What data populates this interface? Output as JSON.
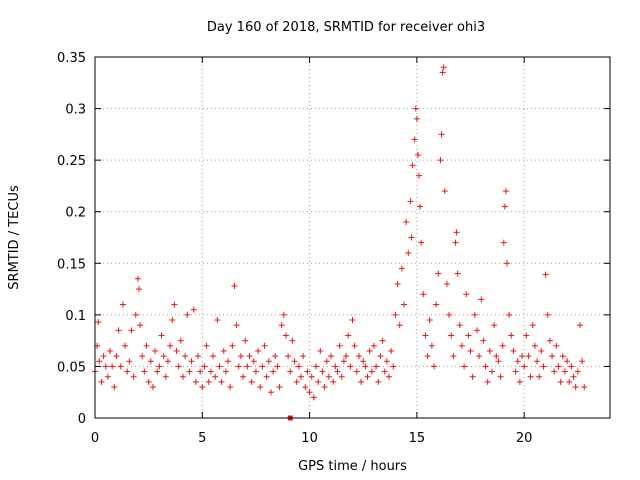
{
  "chart_data": {
    "type": "scatter",
    "title": "Day 160 of 2018, SRMTID for receiver ohi3",
    "xlabel": "GPS time / hours",
    "ylabel": "SRMTID / TECUs",
    "xlim": [
      0,
      24
    ],
    "ylim": [
      0,
      0.35
    ],
    "xticks": [
      0,
      5,
      10,
      15,
      20
    ],
    "xtick_labels": [
      "0",
      "5",
      "10",
      "15",
      "20"
    ],
    "yticks": [
      0,
      0.05,
      0.1,
      0.15,
      0.2,
      0.25,
      0.3,
      0.35
    ],
    "ytick_labels": [
      "0",
      "0.05",
      "0.1",
      "0.15",
      "0.2",
      "0.25",
      "0.3",
      "0.35"
    ],
    "grid": true,
    "marker": "+",
    "color": "#e31a1c",
    "series": [
      {
        "name": "SRMTID",
        "points": [
          [
            0.0,
            0.045
          ],
          [
            0.1,
            0.07
          ],
          [
            0.15,
            0.093
          ],
          [
            0.2,
            0.055
          ],
          [
            0.3,
            0.035
          ],
          [
            0.4,
            0.06
          ],
          [
            0.5,
            0.05
          ],
          [
            0.6,
            0.04
          ],
          [
            0.7,
            0.065
          ],
          [
            0.8,
            0.05
          ],
          [
            0.9,
            0.03
          ],
          [
            1.0,
            0.06
          ],
          [
            1.1,
            0.085
          ],
          [
            1.2,
            0.05
          ],
          [
            1.3,
            0.11
          ],
          [
            1.4,
            0.07
          ],
          [
            1.5,
            0.045
          ],
          [
            1.6,
            0.055
          ],
          [
            1.7,
            0.085
          ],
          [
            1.8,
            0.04
          ],
          [
            1.9,
            0.1
          ],
          [
            2.0,
            0.135
          ],
          [
            2.05,
            0.125
          ],
          [
            2.1,
            0.09
          ],
          [
            2.2,
            0.06
          ],
          [
            2.3,
            0.045
          ],
          [
            2.4,
            0.07
          ],
          [
            2.5,
            0.035
          ],
          [
            2.6,
            0.055
          ],
          [
            2.7,
            0.03
          ],
          [
            2.8,
            0.065
          ],
          [
            2.9,
            0.045
          ],
          [
            3.0,
            0.05
          ],
          [
            3.1,
            0.08
          ],
          [
            3.2,
            0.06
          ],
          [
            3.3,
            0.04
          ],
          [
            3.4,
            0.055
          ],
          [
            3.5,
            0.07
          ],
          [
            3.6,
            0.095
          ],
          [
            3.7,
            0.11
          ],
          [
            3.8,
            0.065
          ],
          [
            3.9,
            0.05
          ],
          [
            4.0,
            0.075
          ],
          [
            4.1,
            0.04
          ],
          [
            4.2,
            0.06
          ],
          [
            4.3,
            0.1
          ],
          [
            4.4,
            0.045
          ],
          [
            4.5,
            0.055
          ],
          [
            4.6,
            0.105
          ],
          [
            4.7,
            0.035
          ],
          [
            4.8,
            0.06
          ],
          [
            4.9,
            0.045
          ],
          [
            5.0,
            0.03
          ],
          [
            5.1,
            0.05
          ],
          [
            5.2,
            0.07
          ],
          [
            5.3,
            0.035
          ],
          [
            5.4,
            0.045
          ],
          [
            5.5,
            0.06
          ],
          [
            5.6,
            0.04
          ],
          [
            5.7,
            0.095
          ],
          [
            5.8,
            0.05
          ],
          [
            5.9,
            0.035
          ],
          [
            6.0,
            0.065
          ],
          [
            6.1,
            0.045
          ],
          [
            6.2,
            0.055
          ],
          [
            6.3,
            0.03
          ],
          [
            6.4,
            0.07
          ],
          [
            6.5,
            0.128
          ],
          [
            6.6,
            0.09
          ],
          [
            6.7,
            0.05
          ],
          [
            6.8,
            0.06
          ],
          [
            6.9,
            0.04
          ],
          [
            7.0,
            0.075
          ],
          [
            7.1,
            0.05
          ],
          [
            7.2,
            0.06
          ],
          [
            7.3,
            0.035
          ],
          [
            7.4,
            0.055
          ],
          [
            7.5,
            0.045
          ],
          [
            7.6,
            0.065
          ],
          [
            7.7,
            0.03
          ],
          [
            7.8,
            0.05
          ],
          [
            7.9,
            0.07
          ],
          [
            8.0,
            0.04
          ],
          [
            8.1,
            0.055
          ],
          [
            8.2,
            0.025
          ],
          [
            8.3,
            0.045
          ],
          [
            8.4,
            0.06
          ],
          [
            8.5,
            0.05
          ],
          [
            8.6,
            0.03
          ],
          [
            8.7,
            0.09
          ],
          [
            8.8,
            0.1
          ],
          [
            8.9,
            0.08
          ],
          [
            9.0,
            0.06
          ],
          [
            9.1,
            0.045
          ],
          [
            9.2,
            0.075
          ],
          [
            9.3,
            0.055
          ],
          [
            9.4,
            0.035
          ],
          [
            9.5,
            0.05
          ],
          [
            9.6,
            0.04
          ],
          [
            9.7,
            0.06
          ],
          [
            9.8,
            0.03
          ],
          [
            9.9,
            0.045
          ],
          [
            10.0,
            0.025
          ],
          [
            10.1,
            0.04
          ],
          [
            10.2,
            0.02
          ],
          [
            10.3,
            0.05
          ],
          [
            10.4,
            0.035
          ],
          [
            10.5,
            0.065
          ],
          [
            10.6,
            0.045
          ],
          [
            10.7,
            0.03
          ],
          [
            10.8,
            0.055
          ],
          [
            10.9,
            0.04
          ],
          [
            11.0,
            0.06
          ],
          [
            11.1,
            0.035
          ],
          [
            11.2,
            0.05
          ],
          [
            11.3,
            0.045
          ],
          [
            11.4,
            0.07
          ],
          [
            11.5,
            0.04
          ],
          [
            11.6,
            0.055
          ],
          [
            11.7,
            0.06
          ],
          [
            11.8,
            0.08
          ],
          [
            11.9,
            0.05
          ],
          [
            12.0,
            0.095
          ],
          [
            12.1,
            0.07
          ],
          [
            12.2,
            0.045
          ],
          [
            12.3,
            0.06
          ],
          [
            12.4,
            0.035
          ],
          [
            12.5,
            0.055
          ],
          [
            12.6,
            0.05
          ],
          [
            12.7,
            0.04
          ],
          [
            12.8,
            0.065
          ],
          [
            12.9,
            0.045
          ],
          [
            13.0,
            0.07
          ],
          [
            13.1,
            0.05
          ],
          [
            13.2,
            0.035
          ],
          [
            13.3,
            0.06
          ],
          [
            13.4,
            0.075
          ],
          [
            13.5,
            0.045
          ],
          [
            13.6,
            0.055
          ],
          [
            13.7,
            0.04
          ],
          [
            13.8,
            0.065
          ],
          [
            13.9,
            0.05
          ],
          [
            14.0,
            0.1
          ],
          [
            14.1,
            0.13
          ],
          [
            14.2,
            0.09
          ],
          [
            14.3,
            0.145
          ],
          [
            14.4,
            0.11
          ],
          [
            14.5,
            0.19
          ],
          [
            14.6,
            0.16
          ],
          [
            14.7,
            0.21
          ],
          [
            14.75,
            0.175
          ],
          [
            14.8,
            0.245
          ],
          [
            14.9,
            0.27
          ],
          [
            14.95,
            0.3
          ],
          [
            15.0,
            0.29
          ],
          [
            15.05,
            0.255
          ],
          [
            15.1,
            0.235
          ],
          [
            15.15,
            0.205
          ],
          [
            15.2,
            0.17
          ],
          [
            15.3,
            0.12
          ],
          [
            15.4,
            0.08
          ],
          [
            15.5,
            0.06
          ],
          [
            15.6,
            0.095
          ],
          [
            15.7,
            0.07
          ],
          [
            15.8,
            0.05
          ],
          [
            15.9,
            0.11
          ],
          [
            16.0,
            0.14
          ],
          [
            16.1,
            0.25
          ],
          [
            16.15,
            0.275
          ],
          [
            16.2,
            0.335
          ],
          [
            16.25,
            0.34
          ],
          [
            16.3,
            0.22
          ],
          [
            16.4,
            0.13
          ],
          [
            16.5,
            0.1
          ],
          [
            16.6,
            0.08
          ],
          [
            16.7,
            0.06
          ],
          [
            16.8,
            0.17
          ],
          [
            16.85,
            0.18
          ],
          [
            16.9,
            0.14
          ],
          [
            17.0,
            0.09
          ],
          [
            17.1,
            0.07
          ],
          [
            17.2,
            0.05
          ],
          [
            17.3,
            0.12
          ],
          [
            17.4,
            0.08
          ],
          [
            17.5,
            0.065
          ],
          [
            17.6,
            0.04
          ],
          [
            17.7,
            0.1
          ],
          [
            17.8,
            0.085
          ],
          [
            17.9,
            0.06
          ],
          [
            18.0,
            0.115
          ],
          [
            18.1,
            0.075
          ],
          [
            18.2,
            0.05
          ],
          [
            18.3,
            0.035
          ],
          [
            18.4,
            0.065
          ],
          [
            18.5,
            0.045
          ],
          [
            18.6,
            0.09
          ],
          [
            18.7,
            0.06
          ],
          [
            18.8,
            0.055
          ],
          [
            18.9,
            0.04
          ],
          [
            19.0,
            0.07
          ],
          [
            19.05,
            0.17
          ],
          [
            19.1,
            0.205
          ],
          [
            19.15,
            0.22
          ],
          [
            19.2,
            0.15
          ],
          [
            19.3,
            0.1
          ],
          [
            19.4,
            0.08
          ],
          [
            19.5,
            0.065
          ],
          [
            19.6,
            0.045
          ],
          [
            19.7,
            0.055
          ],
          [
            19.8,
            0.035
          ],
          [
            19.9,
            0.06
          ],
          [
            20.0,
            0.05
          ],
          [
            20.1,
            0.08
          ],
          [
            20.2,
            0.06
          ],
          [
            20.3,
            0.04
          ],
          [
            20.4,
            0.09
          ],
          [
            20.5,
            0.07
          ],
          [
            20.6,
            0.055
          ],
          [
            20.7,
            0.04
          ],
          [
            20.8,
            0.065
          ],
          [
            20.9,
            0.05
          ],
          [
            21.0,
            0.139
          ],
          [
            21.1,
            0.1
          ],
          [
            21.2,
            0.075
          ],
          [
            21.3,
            0.06
          ],
          [
            21.4,
            0.045
          ],
          [
            21.5,
            0.07
          ],
          [
            21.6,
            0.05
          ],
          [
            21.7,
            0.035
          ],
          [
            21.8,
            0.06
          ],
          [
            21.9,
            0.045
          ],
          [
            22.0,
            0.055
          ],
          [
            22.1,
            0.035
          ],
          [
            22.2,
            0.05
          ],
          [
            22.3,
            0.04
          ],
          [
            22.4,
            0.03
          ],
          [
            22.5,
            0.045
          ],
          [
            22.6,
            0.09
          ],
          [
            22.7,
            0.055
          ],
          [
            22.8,
            0.03
          ]
        ]
      },
      {
        "name": "zero-marker",
        "marker": "square",
        "points": [
          [
            9.1,
            0.0
          ]
        ]
      }
    ]
  }
}
